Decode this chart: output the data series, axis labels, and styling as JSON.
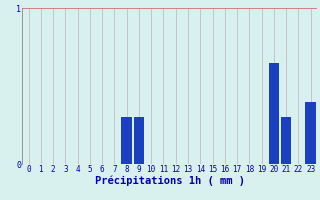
{
  "hours": [
    0,
    1,
    2,
    3,
    4,
    5,
    6,
    7,
    8,
    9,
    10,
    11,
    12,
    13,
    14,
    15,
    16,
    17,
    18,
    19,
    20,
    21,
    22,
    23
  ],
  "values": [
    0,
    0,
    0,
    0,
    0,
    0,
    0,
    0,
    0.3,
    0.3,
    0,
    0,
    0,
    0,
    0,
    0,
    0,
    0,
    0,
    0,
    0.65,
    0.3,
    0,
    0.4
  ],
  "bar_color": "#1a3fbf",
  "background_color": "#d8f0ee",
  "grid_color": "#c0afc0",
  "xlabel": "Précipitations 1h ( mm )",
  "xlim": [
    -0.5,
    23.5
  ],
  "ylim": [
    0,
    1.0
  ],
  "label_fontsize": 7.5,
  "tick_fontsize": 6,
  "tick_color": "#0000aa"
}
